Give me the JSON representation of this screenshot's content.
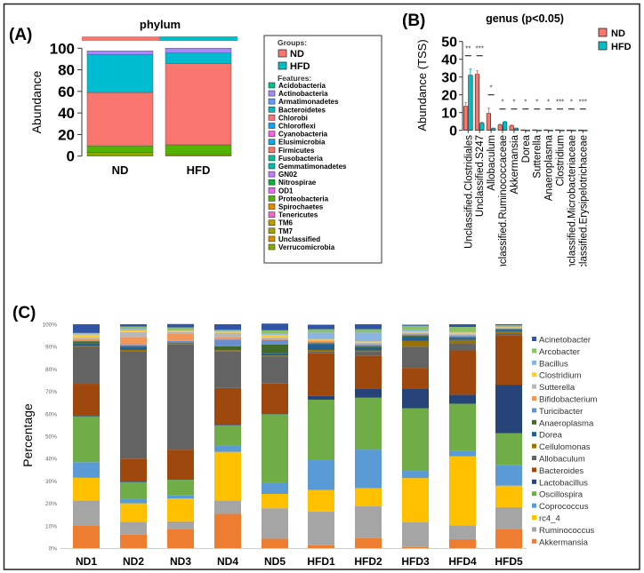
{
  "panel_labels": {
    "a": "(A)",
    "b": "(B)",
    "c": "(C)"
  },
  "chart_data": [
    {
      "type": "bar",
      "stacked": true,
      "title": "phylum",
      "ylabel": "Abundance",
      "ylim": [
        0,
        100
      ],
      "yticks": [
        "0",
        "20",
        "40",
        "60",
        "80",
        "100"
      ],
      "categories": [
        "ND",
        "HFD"
      ],
      "category_colors": [
        "#f8766d",
        "#00bfc4"
      ],
      "series": [
        {
          "name": "Verrucomicrobia",
          "color": "#8aa800",
          "values": [
            3.5,
            1.5
          ]
        },
        {
          "name": "Proteobacteria",
          "color": "#53b400",
          "values": [
            6,
            9
          ]
        },
        {
          "name": "Firmicutes",
          "color": "#f8766d",
          "values": [
            49.5,
            75.5
          ]
        },
        {
          "name": "Bacteroidetes",
          "color": "#00bcd0",
          "values": [
            35,
            9.5
          ]
        },
        {
          "name": "Actinobacteria",
          "color": "#a58aff",
          "values": [
            3.5,
            4.5
          ]
        }
      ],
      "legend": {
        "groups_title": "Groups:",
        "groups": [
          {
            "name": "ND",
            "color": "#f8766d"
          },
          {
            "name": "HFD",
            "color": "#00bfc4"
          }
        ],
        "features_title": "Features:",
        "features": [
          {
            "name": "Acidobacteria",
            "color": "#00c08b"
          },
          {
            "name": "Actinobacteria",
            "color": "#a58aff"
          },
          {
            "name": "Armatimonadetes",
            "color": "#619cff"
          },
          {
            "name": "Bacteroidetes",
            "color": "#00bfc4"
          },
          {
            "name": "Chlorobi",
            "color": "#f8767d"
          },
          {
            "name": "Chloroflexi",
            "color": "#00a9ff"
          },
          {
            "name": "Cyanobacteria",
            "color": "#f564e3"
          },
          {
            "name": "Elusimicrobia",
            "color": "#00b0f6"
          },
          {
            "name": "Firmicutes",
            "color": "#f8766d"
          },
          {
            "name": "Fusobacteria",
            "color": "#00c094"
          },
          {
            "name": "Gemmatimonadetes",
            "color": "#00bcb0"
          },
          {
            "name": "GN02",
            "color": "#c77cff"
          },
          {
            "name": "Nitrospirae",
            "color": "#00b933"
          },
          {
            "name": "OD1",
            "color": "#e76bf3"
          },
          {
            "name": "Proteobacteria",
            "color": "#53b400"
          },
          {
            "name": "Spirochaetes",
            "color": "#e58700"
          },
          {
            "name": "Tenericutes",
            "color": "#fd61d1"
          },
          {
            "name": "TM6",
            "color": "#c09b00"
          },
          {
            "name": "TM7",
            "color": "#a3a500"
          },
          {
            "name": "Unclassified",
            "color": "#d89000"
          },
          {
            "name": "Verrucomicrobia",
            "color": "#7cae00"
          }
        ]
      }
    },
    {
      "type": "bar",
      "title": "genus (p<0.05)",
      "ylabel": "Abundance (TSS)",
      "ylim": [
        0,
        50
      ],
      "yticks": [
        "0",
        "10",
        "20",
        "30",
        "40",
        "50"
      ],
      "categories": [
        "Unclassified.Clostridiales",
        "Unclassified.S247",
        "Allobaculum",
        "Unclassified.Ruminococcaceae",
        "Akkermansia",
        "Dorea",
        "Sutterella",
        "Anaeroplasma",
        "Clostridium",
        "Unclassified.Microbacteriaceae",
        "Unclassified.Erysipelotrichaceae"
      ],
      "series": [
        {
          "name": "ND",
          "color": "#f8766d",
          "values": [
            13.5,
            31.5,
            9.5,
            3,
            2.5,
            0.3,
            0.3,
            0.3,
            0.3,
            0.2,
            0.2
          ],
          "errors": [
            2,
            2,
            3,
            0.5,
            0.5,
            0.1,
            0.1,
            0.1,
            0.1,
            0.1,
            0.1
          ]
        },
        {
          "name": "HFD",
          "color": "#00bfc4",
          "values": [
            31,
            4,
            1,
            4.5,
            1,
            0.1,
            0.1,
            0.1,
            0.1,
            0.1,
            0.1
          ],
          "errors": [
            3.5,
            0.5,
            0.3,
            0.5,
            0.3,
            0.05,
            0.05,
            0.05,
            0.05,
            0.05,
            0.05
          ]
        }
      ],
      "significance": [
        "**",
        "***",
        "*",
        "*",
        "*",
        "*",
        "*",
        "*",
        "***",
        "*",
        "***"
      ],
      "significance_level": [
        42,
        42,
        20,
        12,
        12,
        12,
        12,
        12,
        12,
        12,
        12
      ],
      "legend_position": "top-right"
    },
    {
      "type": "bar",
      "stacked": true,
      "ylabel": "Percentage",
      "ylim": [
        0,
        100
      ],
      "yticks": [
        "0%",
        "10%",
        "20%",
        "30%",
        "40%",
        "50%",
        "60%",
        "70%",
        "80%",
        "90%",
        "100%"
      ],
      "categories": [
        "ND1",
        "ND2",
        "ND3",
        "ND4",
        "ND5",
        "HFD1",
        "HFD2",
        "HFD3",
        "HFD4",
        "HFD5"
      ],
      "legend_position": "right",
      "series": [
        {
          "name": "Akkermansia",
          "color": "#ed7d31",
          "values": [
            10.2,
            6,
            8.5,
            15.3,
            4.2,
            1.3,
            4.5,
            0.5,
            4,
            8.5
          ]
        },
        {
          "name": "Ruminococcus",
          "color": "#a5a5a5",
          "values": [
            11,
            5.8,
            3.5,
            6,
            13.6,
            15,
            14.3,
            11,
            6.2,
            9.8
          ]
        },
        {
          "name": "rc4_4",
          "color": "#ffc000",
          "values": [
            10.2,
            8.2,
            10.2,
            21.7,
            6.4,
            9.7,
            8,
            19.8,
            30.8,
            9.6
          ]
        },
        {
          "name": "Coprococcus",
          "color": "#5b9bd5",
          "values": [
            7,
            2,
            1.3,
            2.8,
            4.8,
            13.3,
            17.2,
            3.2,
            2.3,
            9.3
          ]
        },
        {
          "name": "Oscillospira",
          "color": "#70ad47",
          "values": [
            20.5,
            7.5,
            7,
            9,
            30.8,
            27,
            23.2,
            28,
            21.2,
            14.1
          ]
        },
        {
          "name": "Lactobacillus",
          "color": "#264478",
          "values": [
            0.5,
            0.5,
            0.3,
            0.3,
            0.3,
            1.7,
            4.1,
            8.7,
            4,
            21.7
          ]
        },
        {
          "name": "Bacteroides",
          "color": "#9e480e",
          "values": [
            14,
            10,
            13.2,
            16.4,
            13.4,
            19,
            14.7,
            9.3,
            19.8,
            22
          ]
        },
        {
          "name": "Allobaculum",
          "color": "#636363",
          "values": [
            16.5,
            48,
            47,
            16.5,
            12,
            1,
            2,
            9.5,
            3.2,
            1
          ]
        },
        {
          "name": "Cellulomonas",
          "color": "#997300",
          "values": [
            0.3,
            0.5,
            0.5,
            0.4,
            0.5,
            0.5,
            0.3,
            2.5,
            1.5,
            0.7
          ]
        },
        {
          "name": "Dorea",
          "color": "#255e91",
          "values": [
            1.2,
            1.5,
            0.3,
            0.3,
            1,
            2.5,
            1.5,
            2,
            1,
            0.8
          ]
        },
        {
          "name": "Anaeroplasma",
          "color": "#43682b",
          "values": [
            1,
            0.3,
            0.2,
            1.5,
            4,
            0.5,
            0.5,
            0.5,
            0.3,
            0.3
          ]
        },
        {
          "name": "Turicibacter",
          "color": "#698ed0",
          "values": [
            0.3,
            0.5,
            0.5,
            3,
            2,
            0.5,
            0.5,
            0.5,
            0.5,
            0.3
          ]
        },
        {
          "name": "Bifidobacterium",
          "color": "#f1975a",
          "values": [
            0.8,
            3.5,
            3.3,
            1,
            0.5,
            0.5,
            0.5,
            0.5,
            0.5,
            0.2
          ]
        },
        {
          "name": "Sutterella",
          "color": "#b7b7b7",
          "values": [
            0.5,
            2.2,
            0.8,
            2,
            0.5,
            0.5,
            0.5,
            0.3,
            0.5,
            0.3
          ]
        },
        {
          "name": "Clostridium",
          "color": "#ffcd33",
          "values": [
            1.4,
            0.8,
            0.5,
            0.5,
            1.3,
            0.3,
            0.5,
            0.5,
            0.5,
            0.2
          ]
        },
        {
          "name": "Bacillus",
          "color": "#8cb4e0",
          "values": [
            0.5,
            0.7,
            0.5,
            0.3,
            0.7,
            3,
            4,
            0.5,
            0.3,
            0.5
          ]
        },
        {
          "name": "Arcobacter",
          "color": "#8cc168",
          "values": [
            0.2,
            1,
            1,
            0.5,
            1.3,
            1.5,
            1.5,
            2,
            2.2,
            0.2
          ]
        },
        {
          "name": "Acinetobacter",
          "color": "#2f55a4",
          "values": [
            3.9,
            1,
            1.5,
            2.5,
            3,
            2,
            2.2,
            0.5,
            1.2,
            0.5
          ]
        }
      ]
    }
  ]
}
